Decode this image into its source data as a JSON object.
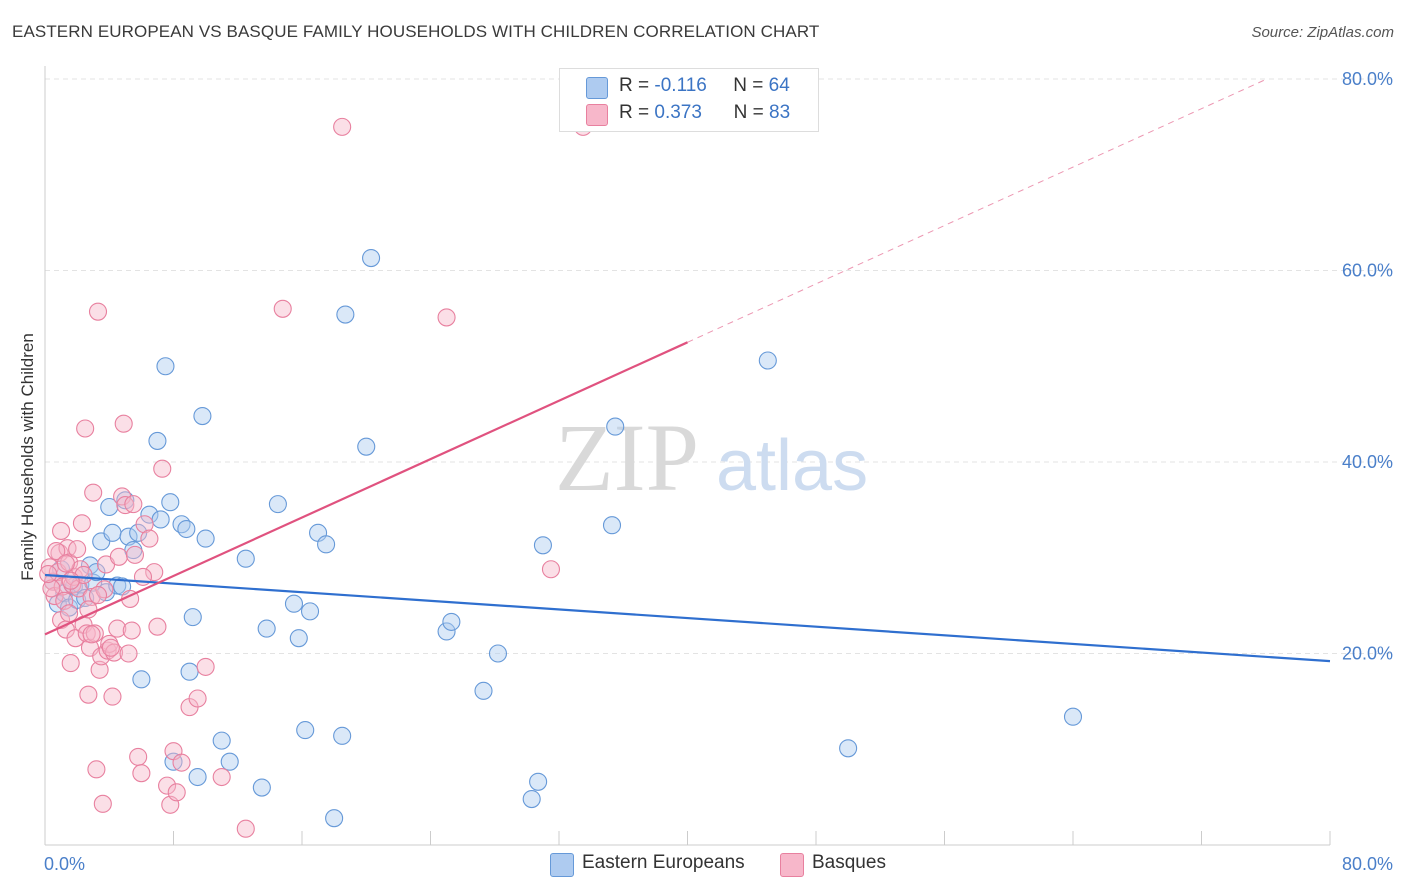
{
  "chart_data": {
    "type": "scatter",
    "title": "EASTERN EUROPEAN VS BASQUE FAMILY HOUSEHOLDS WITH CHILDREN CORRELATION CHART",
    "source": "Source: ZipAtlas.com",
    "xlabel": "",
    "ylabel": "Family Households with Children",
    "xlim": [
      0,
      80
    ],
    "ylim": [
      0,
      84
    ],
    "x_tick_labels": [
      "0.0%",
      "80.0%"
    ],
    "y_tick_labels": [
      "20.0%",
      "40.0%",
      "60.0%",
      "80.0%"
    ],
    "y_ticks": [
      20,
      40,
      60,
      80
    ],
    "grid": true,
    "watermark": {
      "zip": "ZIP",
      "atlas": "atlas"
    },
    "legend_stats": [
      {
        "r_label": "R =",
        "r_value": "-0.116",
        "n_label": "N =",
        "n_value": "64"
      },
      {
        "r_label": "R =",
        "r_value": "0.373",
        "n_label": "N =",
        "n_value": "83"
      }
    ],
    "series": [
      {
        "name": "Eastern Europeans",
        "color": "#aecbf0",
        "stroke": "#6699d8",
        "line_color": "#2f6fcf",
        "trend": {
          "x0": 0,
          "y0": 28.2,
          "x1": 80,
          "y1": 19.2,
          "dashed_to": 80
        },
        "points": [
          [
            0.5,
            27.5
          ],
          [
            0.8,
            25.2
          ],
          [
            1.0,
            28.8
          ],
          [
            1.2,
            26.3
          ],
          [
            1.5,
            24.8
          ],
          [
            1.8,
            27.0
          ],
          [
            2.0,
            25.6
          ],
          [
            2.2,
            27.2
          ],
          [
            2.5,
            25.8
          ],
          [
            2.8,
            29.2
          ],
          [
            3.0,
            27.4
          ],
          [
            3.2,
            28.5
          ],
          [
            3.5,
            31.7
          ],
          [
            3.8,
            26.4
          ],
          [
            4.0,
            35.3
          ],
          [
            4.2,
            32.6
          ],
          [
            4.5,
            27.1
          ],
          [
            4.8,
            27.0
          ],
          [
            5.0,
            36.0
          ],
          [
            5.2,
            32.2
          ],
          [
            5.5,
            30.8
          ],
          [
            5.8,
            32.6
          ],
          [
            6.0,
            17.3
          ],
          [
            6.5,
            34.5
          ],
          [
            7.0,
            42.2
          ],
          [
            7.2,
            34.0
          ],
          [
            7.5,
            50.0
          ],
          [
            7.8,
            35.8
          ],
          [
            8.0,
            8.7
          ],
          [
            8.5,
            33.5
          ],
          [
            8.8,
            33.0
          ],
          [
            9.0,
            18.1
          ],
          [
            9.2,
            23.8
          ],
          [
            9.5,
            7.1
          ],
          [
            9.8,
            44.8
          ],
          [
            10.0,
            32.0
          ],
          [
            11.0,
            10.9
          ],
          [
            11.5,
            8.7
          ],
          [
            12.5,
            29.9
          ],
          [
            13.5,
            6.0
          ],
          [
            13.8,
            22.6
          ],
          [
            14.5,
            35.6
          ],
          [
            15.5,
            25.2
          ],
          [
            15.8,
            21.6
          ],
          [
            16.2,
            12.0
          ],
          [
            16.5,
            24.4
          ],
          [
            17.0,
            32.6
          ],
          [
            17.5,
            31.4
          ],
          [
            18.0,
            2.8
          ],
          [
            18.5,
            11.4
          ],
          [
            18.7,
            55.4
          ],
          [
            20.0,
            41.6
          ],
          [
            20.3,
            61.3
          ],
          [
            25.0,
            22.3
          ],
          [
            25.3,
            23.3
          ],
          [
            27.3,
            16.1
          ],
          [
            28.2,
            20.0
          ],
          [
            30.3,
            4.8
          ],
          [
            30.7,
            6.6
          ],
          [
            31.0,
            31.3
          ],
          [
            35.3,
            33.4
          ],
          [
            35.5,
            43.7
          ],
          [
            45.0,
            50.6
          ],
          [
            50.0,
            10.1
          ],
          [
            64.0,
            13.4
          ]
        ]
      },
      {
        "name": "Basques",
        "color": "#f7b7ca",
        "stroke": "#e8809f",
        "line_color": "#e0527f",
        "trend": {
          "x0": 0,
          "y0": 22.0,
          "x1": 40,
          "y1": 52.5,
          "dashed_to": 76
        },
        "points": [
          [
            0.3,
            29.0
          ],
          [
            0.5,
            27.5
          ],
          [
            0.6,
            26.0
          ],
          [
            0.8,
            28.5
          ],
          [
            0.9,
            30.5
          ],
          [
            1.0,
            32.8
          ],
          [
            1.0,
            23.5
          ],
          [
            1.1,
            27.0
          ],
          [
            1.2,
            25.5
          ],
          [
            1.3,
            22.5
          ],
          [
            1.4,
            31.0
          ],
          [
            1.5,
            29.5
          ],
          [
            1.5,
            24.2
          ],
          [
            1.6,
            19.0
          ],
          [
            1.7,
            27.2
          ],
          [
            1.8,
            28.0
          ],
          [
            1.9,
            21.6
          ],
          [
            2.0,
            30.9
          ],
          [
            2.1,
            26.8
          ],
          [
            2.2,
            28.8
          ],
          [
            2.3,
            33.6
          ],
          [
            2.4,
            23.0
          ],
          [
            2.5,
            43.5
          ],
          [
            2.6,
            22.1
          ],
          [
            2.7,
            15.7
          ],
          [
            2.8,
            20.6
          ],
          [
            2.9,
            25.9
          ],
          [
            3.0,
            36.8
          ],
          [
            3.1,
            22.1
          ],
          [
            3.2,
            7.9
          ],
          [
            3.3,
            55.7
          ],
          [
            3.4,
            18.3
          ],
          [
            3.5,
            19.7
          ],
          [
            3.6,
            4.3
          ],
          [
            3.7,
            26.7
          ],
          [
            3.8,
            29.3
          ],
          [
            3.9,
            20.3
          ],
          [
            4.0,
            21.0
          ],
          [
            4.2,
            15.5
          ],
          [
            4.3,
            20.1
          ],
          [
            4.5,
            22.6
          ],
          [
            4.6,
            30.1
          ],
          [
            4.8,
            36.4
          ],
          [
            4.9,
            44.0
          ],
          [
            5.0,
            35.5
          ],
          [
            5.2,
            20.0
          ],
          [
            5.4,
            22.4
          ],
          [
            5.5,
            35.6
          ],
          [
            5.6,
            30.3
          ],
          [
            5.8,
            9.2
          ],
          [
            6.0,
            7.5
          ],
          [
            6.2,
            33.5
          ],
          [
            6.5,
            32.0
          ],
          [
            6.8,
            28.5
          ],
          [
            7.0,
            22.8
          ],
          [
            7.3,
            39.3
          ],
          [
            7.6,
            6.2
          ],
          [
            7.8,
            4.2
          ],
          [
            8.0,
            9.8
          ],
          [
            8.2,
            5.5
          ],
          [
            8.5,
            8.6
          ],
          [
            9.0,
            14.4
          ],
          [
            9.5,
            15.3
          ],
          [
            10.0,
            18.6
          ],
          [
            11.0,
            7.1
          ],
          [
            12.5,
            1.7
          ],
          [
            14.8,
            56.0
          ],
          [
            18.5,
            75.0
          ],
          [
            25.0,
            55.1
          ],
          [
            31.5,
            28.8
          ],
          [
            33.5,
            75.0
          ],
          [
            0.4,
            26.8
          ],
          [
            0.7,
            30.7
          ],
          [
            1.3,
            29.4
          ],
          [
            2.4,
            28.2
          ],
          [
            2.9,
            22.0
          ],
          [
            3.3,
            26.1
          ],
          [
            4.1,
            20.6
          ],
          [
            5.3,
            25.7
          ],
          [
            6.1,
            28.0
          ],
          [
            0.2,
            28.3
          ],
          [
            1.6,
            27.6
          ],
          [
            2.7,
            24.6
          ]
        ]
      }
    ]
  }
}
